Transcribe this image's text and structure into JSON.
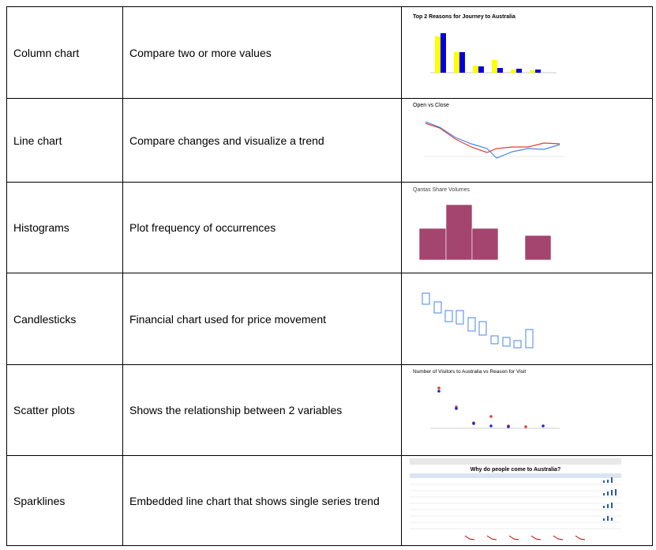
{
  "table": {
    "rows": [
      [
        "Column chart",
        "Compare two or more values",
        "Top 2 Reasons for Journey to Australia"
      ],
      [
        "Line chart",
        "Compare changes and visualize a trend",
        "Open vs Close"
      ],
      [
        "Histograms",
        "Plot frequency of occurrences",
        "Qantas Share Volumes"
      ],
      [
        "Candlesticks",
        "Financial chart used for price movement",
        null
      ],
      [
        "Scatter plots",
        "Shows the relationship between 2 variables",
        "Number of Visitors to Australia vs Reason for Visit"
      ],
      [
        "Sparklines",
        "Embedded line chart that shows single series trend",
        "Why do people come to Australia?"
      ]
    ]
  }
}
